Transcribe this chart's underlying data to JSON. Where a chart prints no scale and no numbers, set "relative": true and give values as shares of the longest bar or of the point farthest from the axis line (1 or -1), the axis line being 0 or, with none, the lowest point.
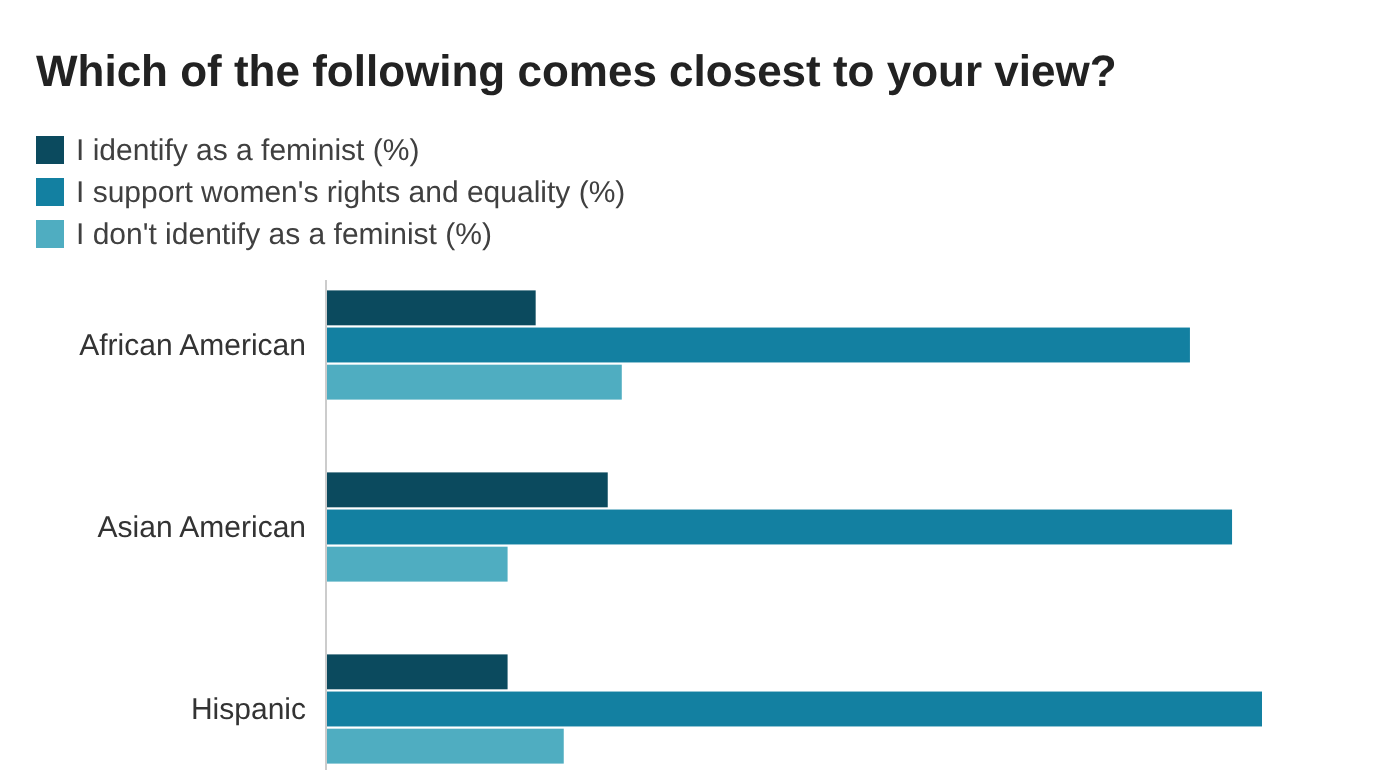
{
  "chart_data": {
    "type": "bar",
    "orientation": "horizontal",
    "relative": true,
    "title": "Which of the following comes closest to your view?",
    "categories": [
      "African American",
      "Asian American",
      "Hispanic"
    ],
    "series": [
      {
        "name": "I identify as a feminist (%)",
        "color": "#0b4a5e",
        "values": [
          0.224,
          0.301,
          0.194
        ]
      },
      {
        "name": "I support women's rights and equality (%)",
        "color": "#1380a1",
        "values": [
          0.923,
          0.968,
          1
        ]
      },
      {
        "name": "I don't identify as a feminist (%)",
        "color": "#4fadc1",
        "values": [
          0.316,
          0.194,
          0.254
        ]
      }
    ],
    "legend": "top left"
  }
}
